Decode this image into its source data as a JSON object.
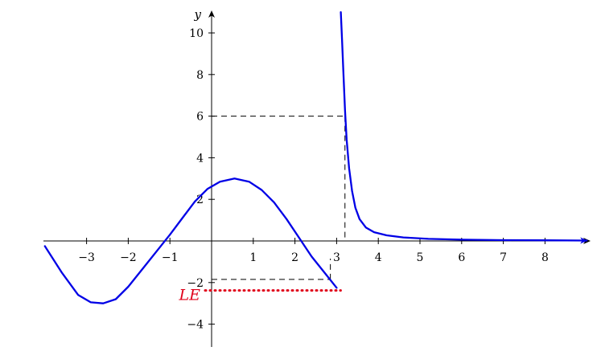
{
  "chart_data": {
    "type": "line",
    "title": "",
    "xlabel": "",
    "ylabel": "y",
    "xlim": [
      -4,
      9
    ],
    "ylim": [
      -5,
      11
    ],
    "x_ticks": [
      -3,
      -2,
      -1,
      1,
      2,
      3,
      4,
      5,
      6,
      7,
      8
    ],
    "x_tick_labels": [
      "−3",
      "−2",
      "−1",
      "1",
      "2",
      "3",
      "4",
      "5",
      "6",
      "7",
      "8"
    ],
    "y_ticks": [
      -4,
      -2,
      2,
      4,
      6,
      8,
      10
    ],
    "y_tick_labels": [
      "−4",
      "−2",
      "2",
      "4",
      "6",
      "8",
      "10"
    ],
    "grid": false,
    "series": [
      {
        "color": "#0000e6",
        "x": [
          -4.0,
          -3.6,
          -3.2,
          -2.9,
          -2.6,
          -2.3,
          -2.0,
          -1.6,
          -1.2,
          -1.0,
          -0.7,
          -0.4,
          -0.1,
          0.2,
          0.55,
          0.9,
          1.2,
          1.5,
          1.8,
          2.1,
          2.4,
          2.7,
          3.0
        ],
        "y": [
          -0.25,
          -1.5,
          -2.6,
          -2.95,
          -3.0,
          -2.8,
          -2.2,
          -1.2,
          -0.2,
          0.3,
          1.1,
          1.9,
          2.5,
          2.85,
          3.0,
          2.85,
          2.45,
          1.85,
          1.05,
          0.15,
          -0.75,
          -1.5,
          -2.25
        ]
      },
      {
        "color": "#0000e6",
        "x": [
          3.1,
          3.13,
          3.16,
          3.2,
          3.24,
          3.3,
          3.37,
          3.45,
          3.55,
          3.7,
          3.9,
          4.2,
          4.6,
          5.2,
          6.0,
          7.0,
          8.0,
          9.0
        ],
        "y": [
          11.0,
          9.7,
          8.2,
          6.3,
          4.9,
          3.5,
          2.4,
          1.6,
          1.05,
          0.65,
          0.42,
          0.27,
          0.17,
          0.1,
          0.06,
          0.04,
          0.03,
          0.02
        ]
      }
    ],
    "annotations": {
      "le_label": "LE",
      "le_value": -2.3,
      "le_x_end": 3.0,
      "dashed_point_1": {
        "x": 3.2,
        "y": 6
      },
      "dashed_point_2": {
        "x": 2.85,
        "y": -1.85
      }
    }
  }
}
